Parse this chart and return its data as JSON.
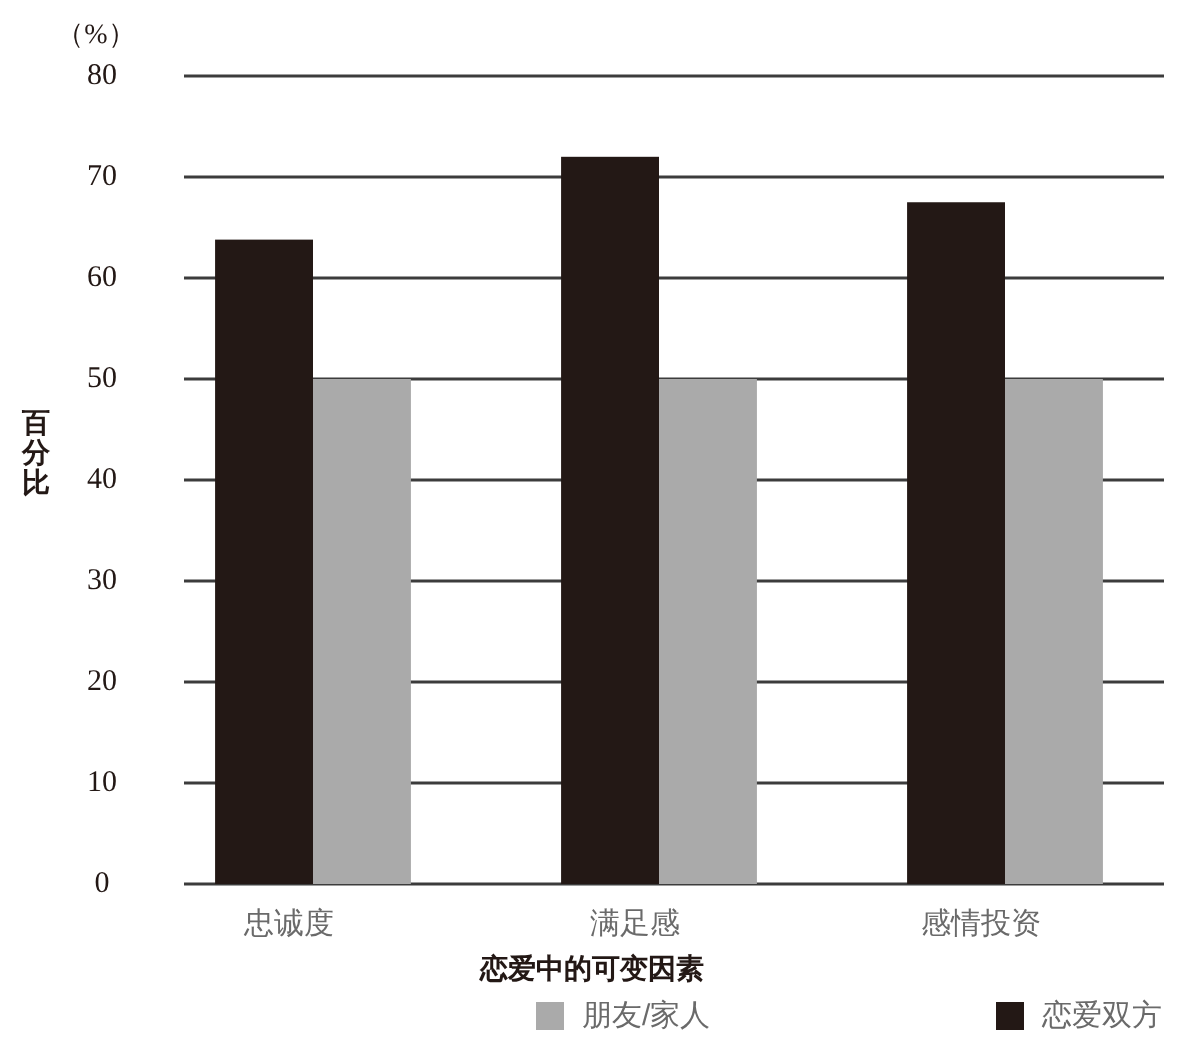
{
  "chart_data": {
    "type": "bar",
    "xlabel": "恋爱中的可变因素",
    "ylabel": "百分比",
    "annotations": [
      "（%）"
    ],
    "categories": [
      "忠诚度",
      "满足感",
      "感情投资"
    ],
    "series": [
      {
        "name": "恋爱双方",
        "color": "#231815",
        "values": [
          63.8,
          72,
          67.5
        ]
      },
      {
        "name": "朋友/家人",
        "color": "#aaaaaa",
        "values": [
          50,
          50,
          50
        ]
      }
    ],
    "ylim": [
      0,
      80
    ],
    "yticks": [
      0,
      10,
      20,
      30,
      40,
      50,
      60,
      70,
      80
    ],
    "grid": "y",
    "legend": "bottom"
  }
}
